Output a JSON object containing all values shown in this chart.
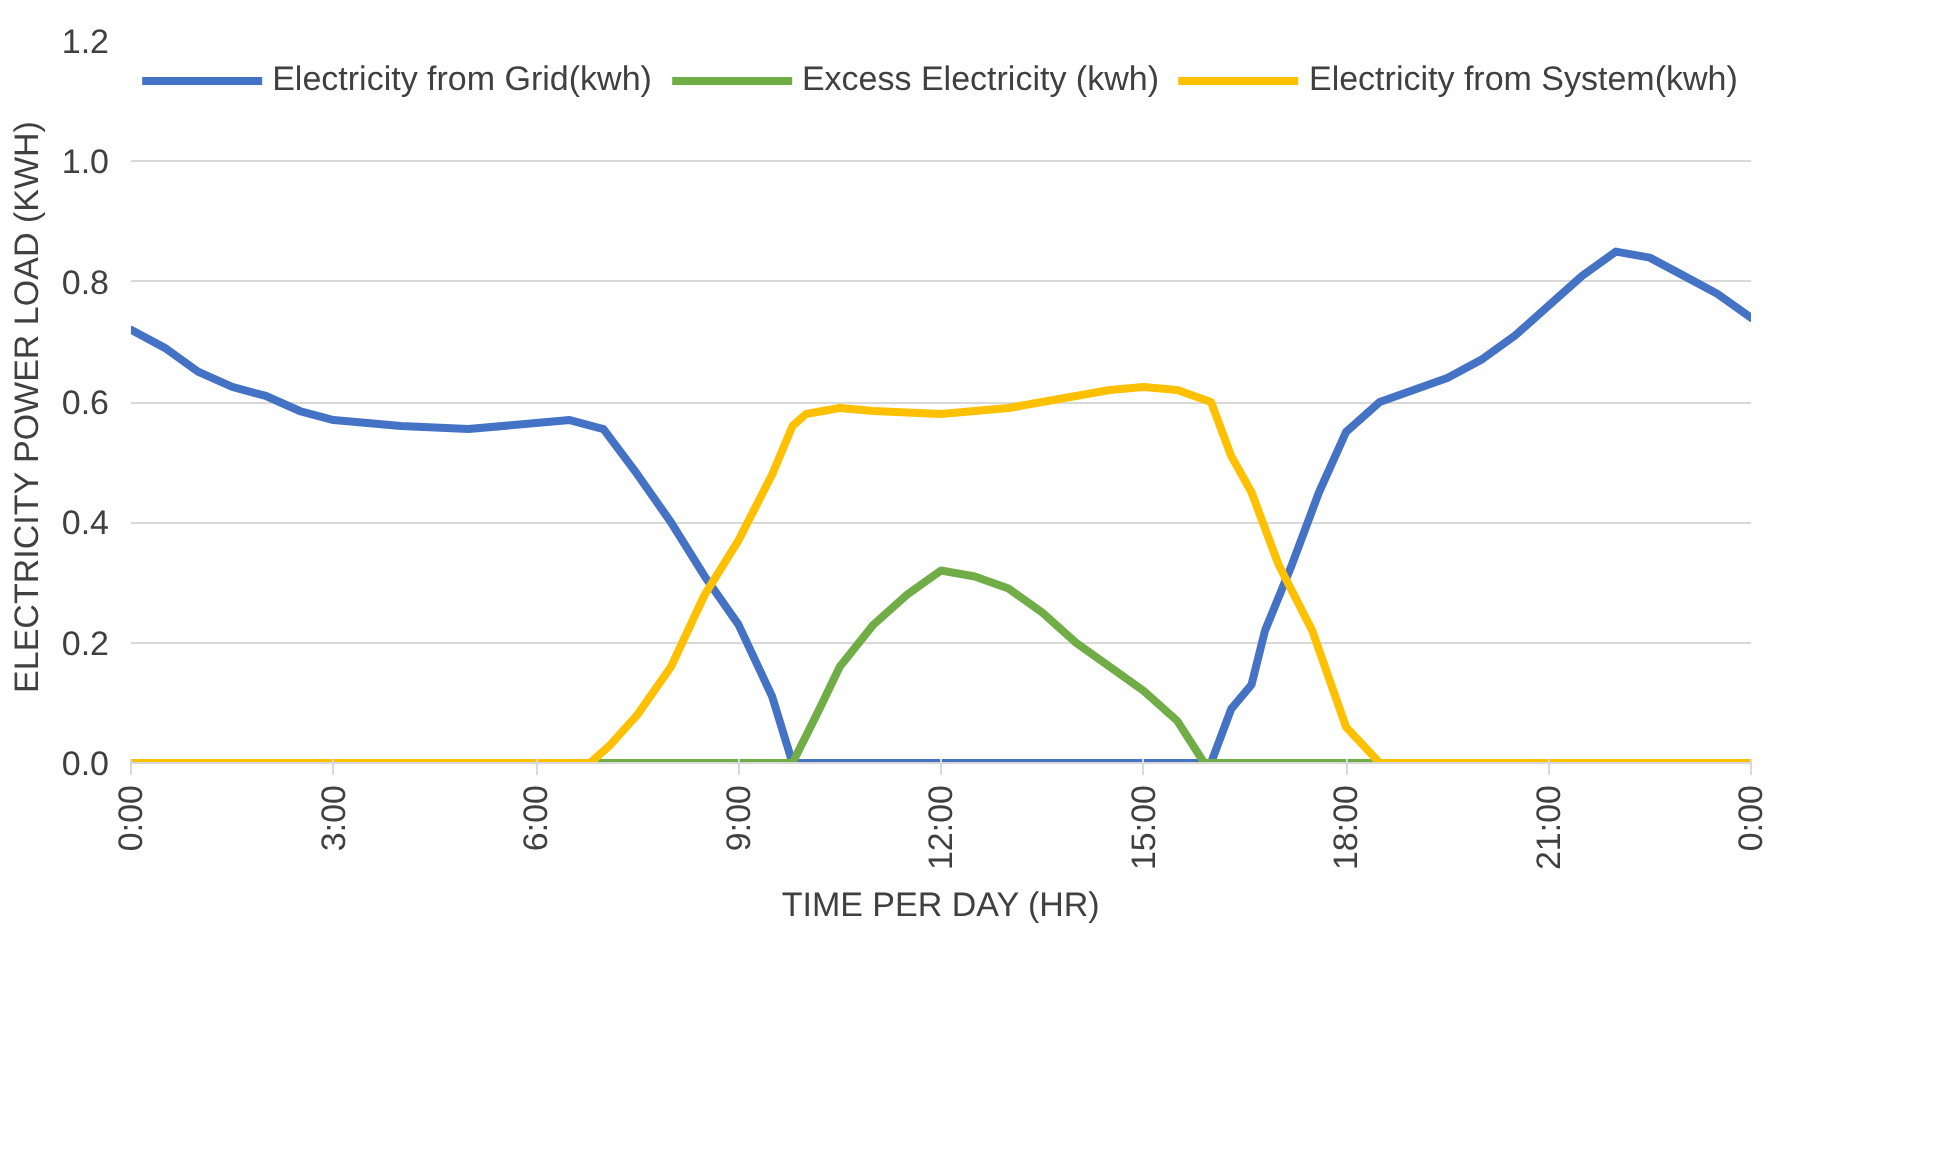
{
  "chart_data": {
    "type": "line",
    "xlabel": "TIME PER DAY (HR)",
    "ylabel": "ELECTRICITY POWER LOAD  (KWH)",
    "xlim": [
      0,
      24
    ],
    "xticks": [
      {
        "value": 0,
        "label": "0:00"
      },
      {
        "value": 3,
        "label": "3:00"
      },
      {
        "value": 6,
        "label": "6:00"
      },
      {
        "value": 9,
        "label": "9:00"
      },
      {
        "value": 12,
        "label": "12:00"
      },
      {
        "value": 15,
        "label": "15:00"
      },
      {
        "value": 18,
        "label": "18:00"
      },
      {
        "value": 21,
        "label": "21:00"
      },
      {
        "value": 24,
        "label": "0:00"
      }
    ],
    "ylim": [
      0,
      1.2
    ],
    "yticks": [
      {
        "value": 0,
        "label": "0.0"
      },
      0.2,
      0.4,
      0.6,
      0.8,
      {
        "value": 1,
        "label": "1.0"
      },
      1.2
    ],
    "grid": "y",
    "legend": "top",
    "marker": "none",
    "line_style": "solid",
    "series": [
      {
        "name": "Electricity from Grid(kwh)",
        "color": "#4472c4",
        "x": [
          0,
          0.5,
          1,
          1.5,
          2,
          2.5,
          3,
          4,
          5,
          6,
          6.5,
          7,
          7.5,
          8,
          8.5,
          9,
          9.5,
          9.8,
          11,
          13,
          15,
          16,
          16.3,
          16.6,
          16.8,
          17.2,
          17.6,
          18,
          18.5,
          19,
          19.5,
          20,
          20.5,
          21,
          21.5,
          22,
          22.5,
          23,
          23.5,
          24
        ],
        "values": [
          0.72,
          0.69,
          0.65,
          0.625,
          0.61,
          0.585,
          0.57,
          0.56,
          0.555,
          0.565,
          0.57,
          0.555,
          0.48,
          0.4,
          0.31,
          0.23,
          0.11,
          0,
          0,
          0,
          0,
          0,
          0.09,
          0.13,
          0.22,
          0.33,
          0.45,
          0.55,
          0.6,
          0.62,
          0.64,
          0.67,
          0.71,
          0.76,
          0.81,
          0.85,
          0.84,
          0.81,
          0.78,
          0.74
        ]
      },
      {
        "name": "Excess Electricity (kwh)",
        "color": "#70ad47",
        "x": [
          0,
          3,
          6,
          9,
          9.8,
          10.2,
          10.5,
          11,
          11.5,
          12,
          12.5,
          13,
          13.5,
          14,
          14.5,
          15,
          15.5,
          15.9,
          18,
          21,
          24
        ],
        "values": [
          0,
          0,
          0,
          0,
          0,
          0.09,
          0.16,
          0.23,
          0.28,
          0.32,
          0.31,
          0.29,
          0.25,
          0.2,
          0.16,
          0.12,
          0.07,
          0,
          0,
          0,
          0
        ]
      },
      {
        "name": "Electricity from System(kwh)",
        "color": "#ffc000",
        "x": [
          0,
          3,
          6,
          6.8,
          7.1,
          7.5,
          8,
          8.5,
          9,
          9.5,
          9.8,
          10,
          10.5,
          11,
          12,
          13,
          14,
          14.5,
          15,
          15.5,
          16,
          16.3,
          16.6,
          17,
          17.5,
          18,
          18.5,
          21,
          24
        ],
        "values": [
          0,
          0,
          0,
          0,
          0.03,
          0.08,
          0.16,
          0.28,
          0.37,
          0.48,
          0.56,
          0.58,
          0.59,
          0.585,
          0.58,
          0.59,
          0.61,
          0.62,
          0.625,
          0.62,
          0.6,
          0.51,
          0.45,
          0.33,
          0.22,
          0.06,
          0,
          0,
          0
        ]
      }
    ]
  }
}
